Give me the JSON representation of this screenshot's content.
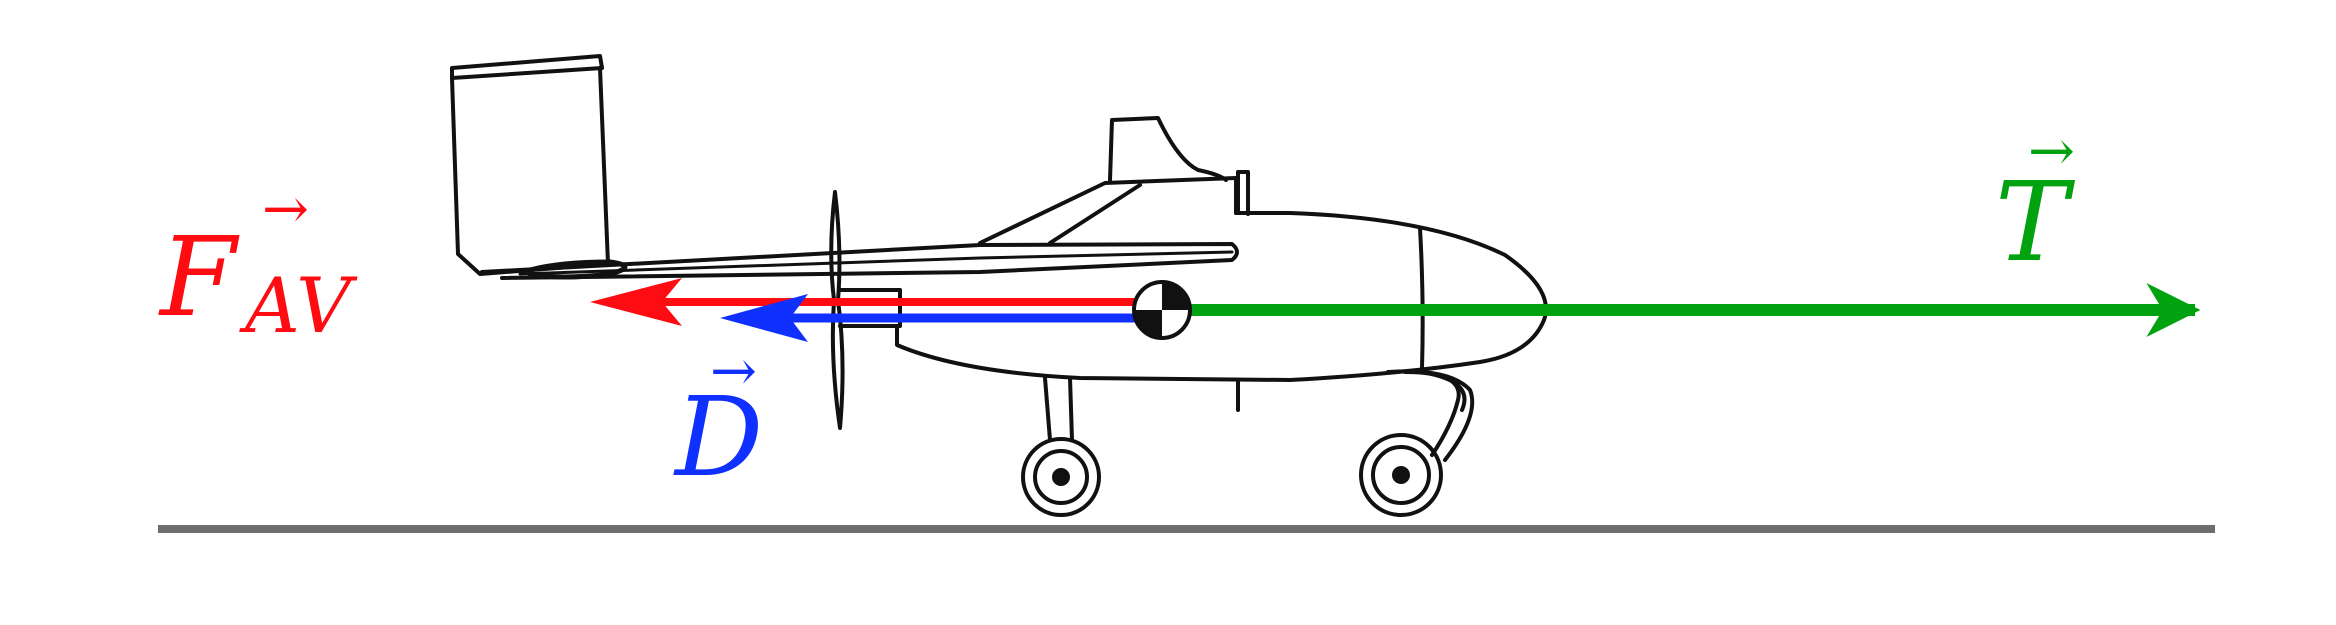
{
  "colors": {
    "background": "#ffffff",
    "ground": "#6e6e6e",
    "aircraft_outline": "#111111",
    "thrust": "#00a30f",
    "drag": "#1030ff",
    "front_wheel_force": "#ff0b12"
  },
  "forces": {
    "thrust": {
      "symbol": "T",
      "direction": "forward",
      "vector_arrow": "→"
    },
    "drag": {
      "symbol": "D",
      "direction": "backward",
      "vector_arrow": "→"
    },
    "front_wheel_force": {
      "symbol": "F",
      "subscript": "AV",
      "direction": "backward",
      "vector_arrow": "→"
    }
  },
  "markers": {
    "center_of_gravity": "cg-symbol"
  }
}
